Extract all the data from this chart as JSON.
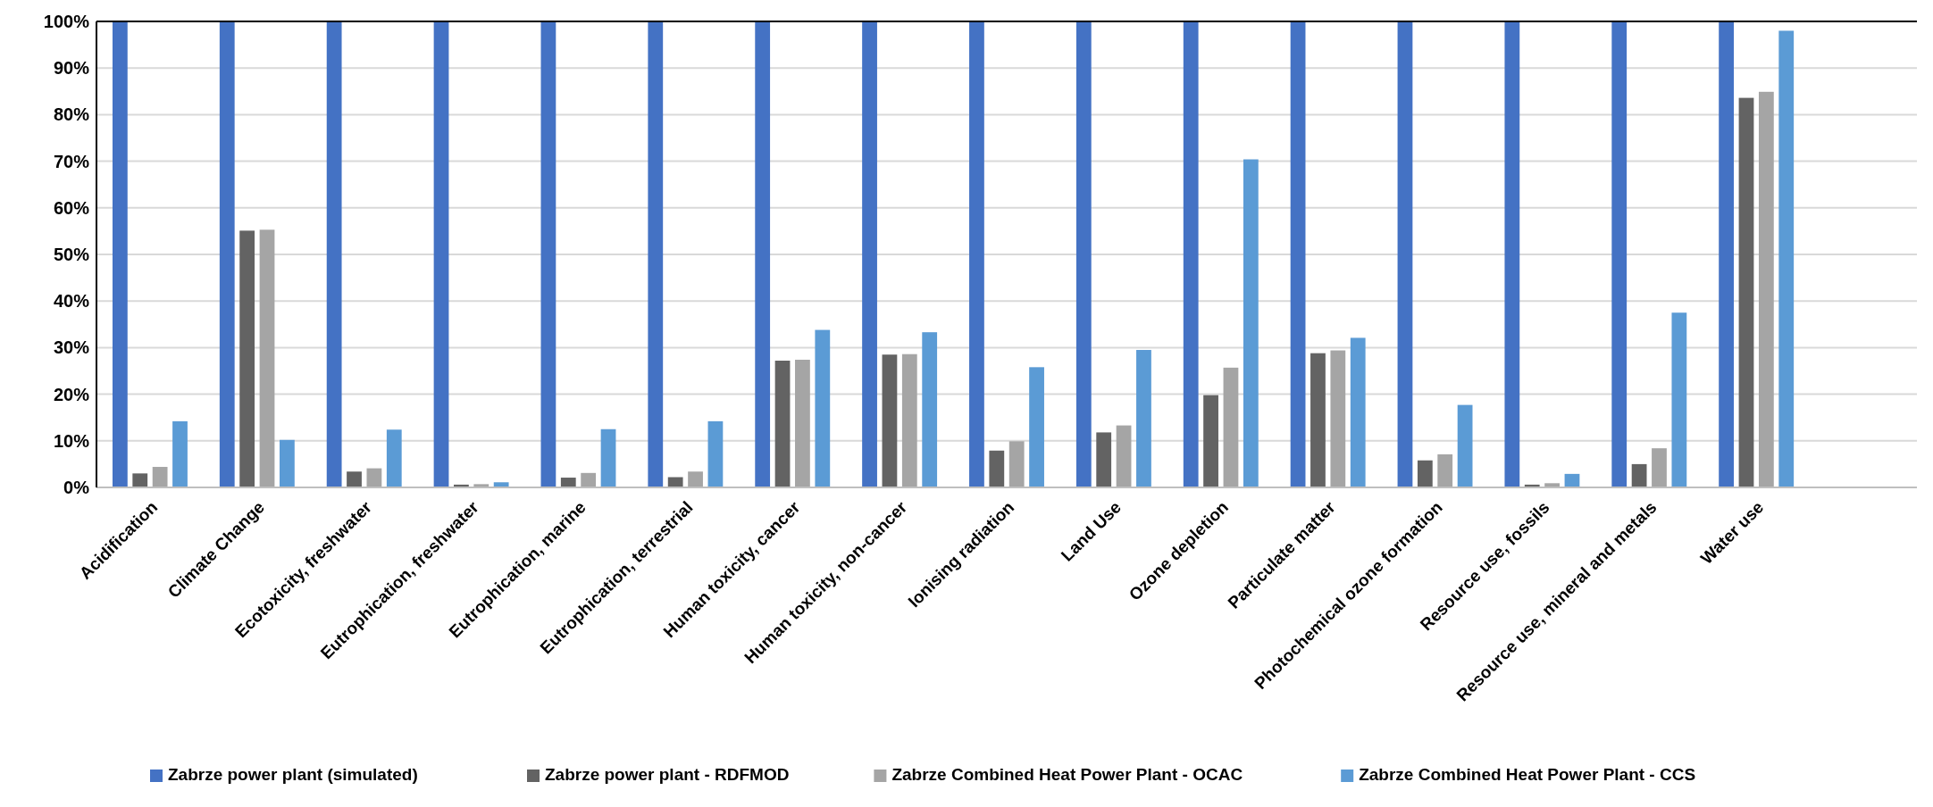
{
  "chart_data": {
    "type": "bar",
    "categories": [
      "Acidification",
      "Climate Change",
      "Ecotoxicity, freshwater",
      "Eutrophication, freshwater",
      "Eutrophication, marine",
      "Eutrophication, terrestrial",
      "Human toxicity, cancer",
      "Human toxicity, non-cancer",
      "Ionising radiation",
      "Land Use",
      "Ozone depletion",
      "Particulate matter",
      "Photochemical ozone formation",
      "Resource use, fossils",
      "Resource use, mineral and metals",
      "Water use",
      null
    ],
    "series": [
      {
        "name": "Zabrze power plant (simulated)",
        "color": "#4472c4",
        "values": [
          100,
          100,
          100,
          100,
          100,
          100,
          100,
          100,
          100,
          100,
          100,
          100,
          100,
          100,
          100,
          100,
          null
        ]
      },
      {
        "name": "Zabrze power plant - RDFMOD",
        "color": "#636363",
        "values": [
          3.0,
          55.1,
          3.4,
          0.6,
          2.1,
          2.2,
          27.2,
          28.5,
          7.9,
          11.8,
          19.8,
          28.8,
          5.8,
          0.6,
          5.0,
          83.6,
          null
        ]
      },
      {
        "name": "Zabrze Combined Heat Power Plant - OCAC",
        "color": "#a5a5a5",
        "values": [
          4.4,
          55.3,
          4.1,
          0.7,
          3.1,
          3.4,
          27.4,
          28.6,
          9.9,
          13.3,
          25.7,
          29.4,
          7.1,
          0.9,
          8.4,
          84.9,
          null
        ]
      },
      {
        "name": "Zabrze Combined Heat Power Plant - CCS",
        "color": "#5b9bd5",
        "values": [
          14.2,
          10.2,
          12.4,
          1.1,
          12.5,
          14.2,
          33.8,
          33.3,
          25.8,
          29.5,
          70.4,
          32.1,
          17.7,
          2.9,
          37.5,
          98.0,
          null
        ]
      }
    ],
    "ylim": [
      0,
      100
    ],
    "yticks": [
      {
        "value": 0,
        "label": "0%"
      },
      {
        "value": 10,
        "label": "10%"
      },
      {
        "value": 20,
        "label": "20%"
      },
      {
        "value": 30,
        "label": "30%"
      },
      {
        "value": 40,
        "label": "40%"
      },
      {
        "value": 50,
        "label": "50%"
      },
      {
        "value": 60,
        "label": "60%"
      },
      {
        "value": 70,
        "label": "70%"
      },
      {
        "value": 80,
        "label": "80%"
      },
      {
        "value": 90,
        "label": "90%"
      },
      {
        "value": 100,
        "label": "100%"
      }
    ],
    "grid": "y",
    "legend": "bottom"
  }
}
